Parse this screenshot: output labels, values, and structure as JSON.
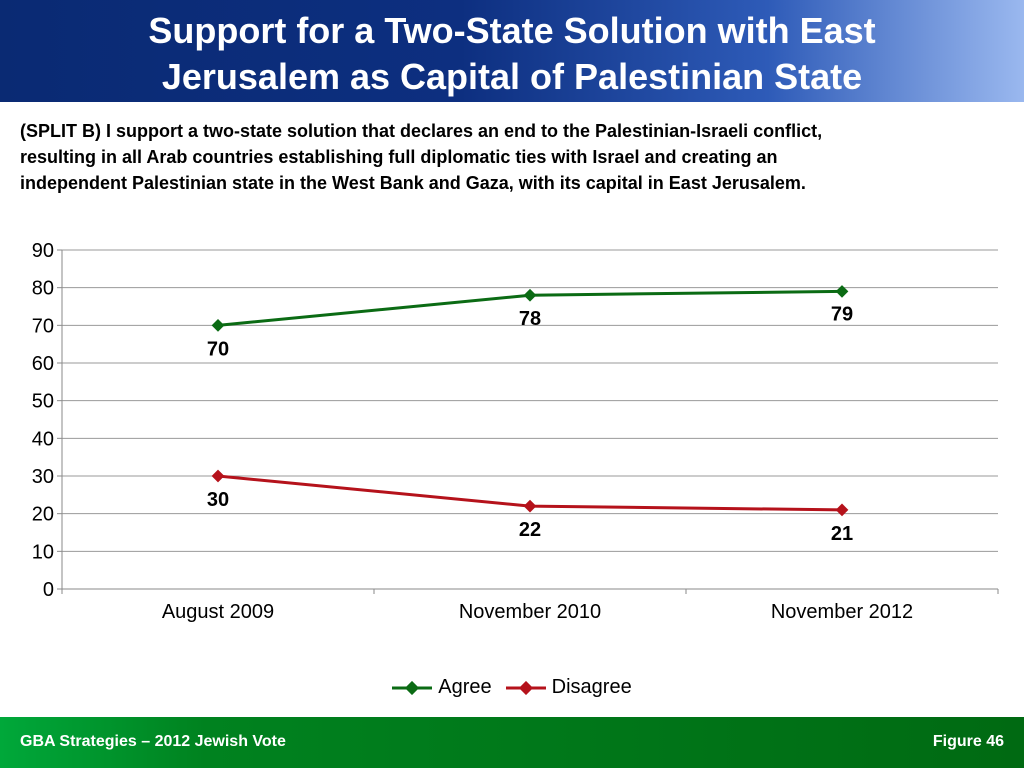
{
  "header": {
    "title_line1": "Support for a Two-State Solution with East",
    "title_line2": "Jerusalem as Capital of Palestinian State"
  },
  "question": {
    "line1": " (SPLIT B) I support a two-state solution that declares an end to the Palestinian-Israeli conflict,",
    "line2": "resulting in all Arab countries establishing full diplomatic ties with Israel and creating an",
    "line3": "independent Palestinian state in the West Bank and Gaza, with its capital in East Jerusalem."
  },
  "chart_data": {
    "type": "line",
    "categories": [
      "August 2009",
      "November 2010",
      "November 2012"
    ],
    "series": [
      {
        "name": "Agree",
        "values": [
          70,
          78,
          79
        ],
        "color": "#0b6b14"
      },
      {
        "name": "Disagree",
        "values": [
          30,
          22,
          21
        ],
        "color": "#b5121b"
      }
    ],
    "ylim": [
      0,
      90
    ],
    "yticks": [
      0,
      10,
      20,
      30,
      40,
      50,
      60,
      70,
      80,
      90
    ],
    "grid": true,
    "legend": "bottom"
  },
  "footer": {
    "left": "GBA Strategies – 2012 Jewish Vote",
    "figure_label": "Figure  46"
  }
}
